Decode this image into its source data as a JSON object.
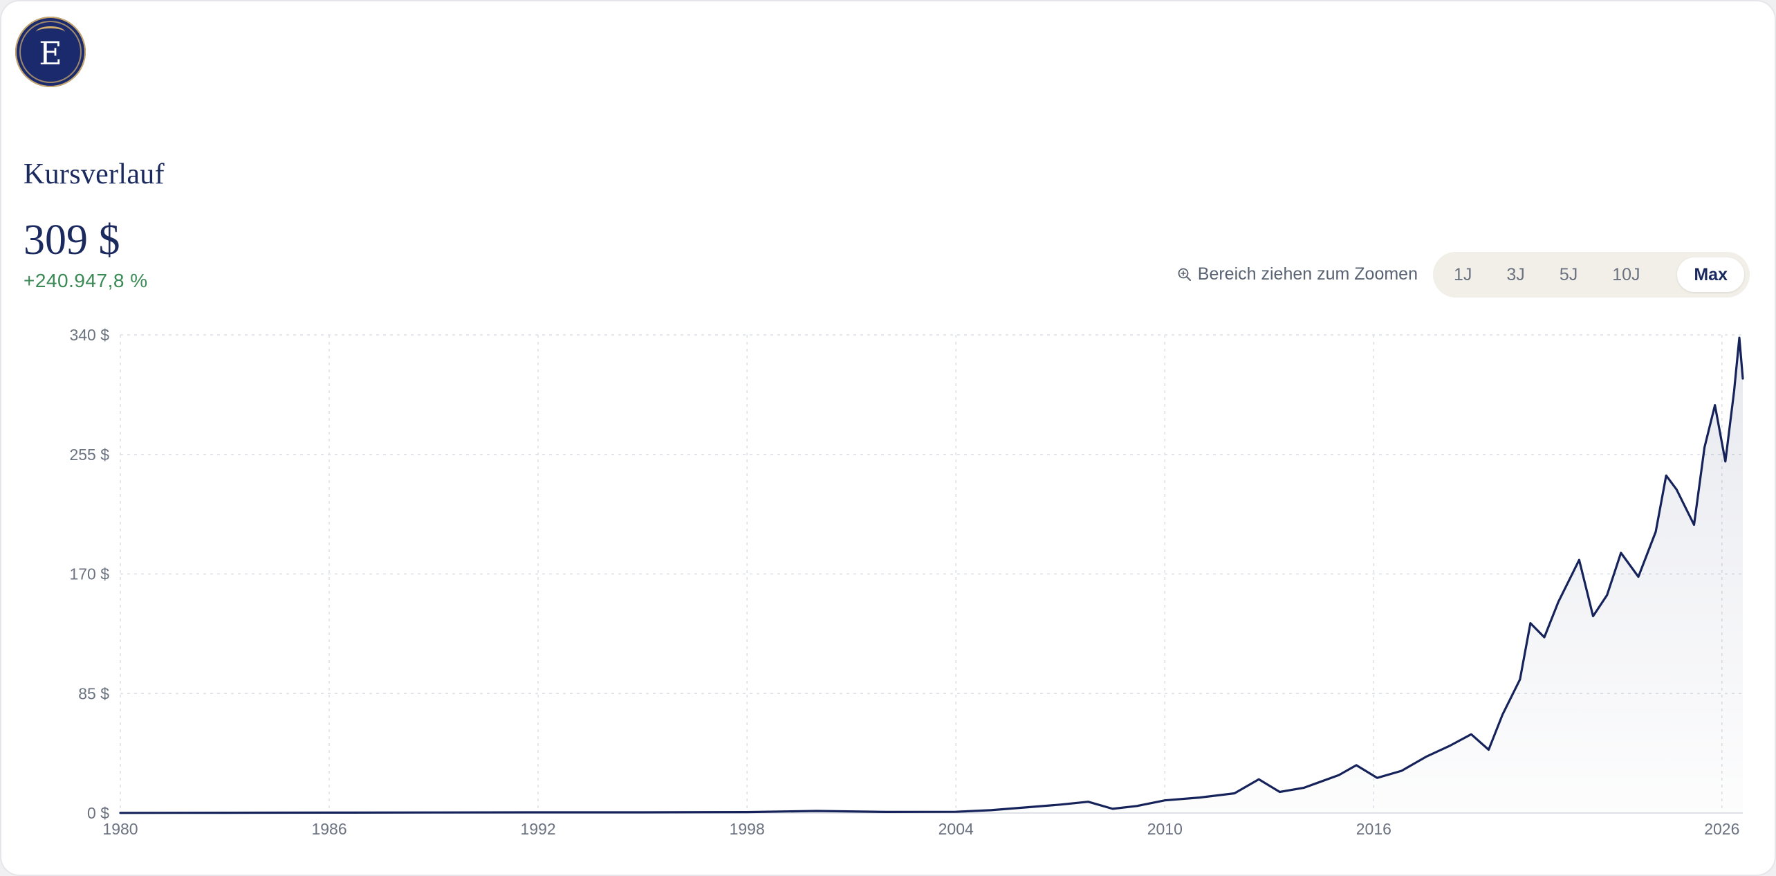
{
  "logo": {
    "letter": "E"
  },
  "header": {
    "title": "Kursverlauf",
    "price": "309 $",
    "change": "+240.947,8 %"
  },
  "controls": {
    "zoom_hint": "Bereich ziehen zum Zoomen",
    "zoom_icon": "zoom-in-icon",
    "ranges": [
      "1J",
      "3J",
      "5J",
      "10J",
      "Max"
    ],
    "active_range": "Max"
  },
  "colors": {
    "brand": "#1b2a5e",
    "line": "#15235a",
    "positive": "#3a8a55",
    "grid": "#dcdfe6",
    "axis_text": "#6b7280"
  },
  "chart_data": {
    "type": "line",
    "title": "",
    "xlabel": "",
    "ylabel": "",
    "xlim": [
      1980,
      2026.6
    ],
    "ylim": [
      0,
      340
    ],
    "y_ticks": [
      0,
      85,
      170,
      255,
      340
    ],
    "y_tick_labels": [
      "0 $",
      "85 $",
      "170 $",
      "255 $",
      "340 $"
    ],
    "x_ticks": [
      1980,
      1986,
      1992,
      1998,
      2004,
      2010,
      2016,
      2026
    ],
    "x_tick_labels": [
      "1980",
      "1986",
      "1992",
      "1998",
      "2004",
      "2010",
      "2016",
      "2026"
    ],
    "grid": true,
    "series": [
      {
        "x": [
          1980,
          1983,
          1986,
          1989,
          1992,
          1995,
          1998,
          2000,
          2002,
          2004,
          2005,
          2006,
          2007,
          2007.8,
          2008.5,
          2009.2,
          2010,
          2011,
          2012,
          2012.7,
          2013.3,
          2014,
          2015,
          2015.5,
          2016.1,
          2016.8,
          2017.5,
          2018.2,
          2018.8,
          2019.3,
          2019.7,
          2020.2,
          2020.5,
          2020.9,
          2021.3,
          2021.9,
          2022.3,
          2022.7,
          2023.1,
          2023.6,
          2024.1,
          2024.4,
          2024.7,
          2025.2,
          2025.5,
          2025.8,
          2026.1,
          2026.35,
          2026.5,
          2026.6
        ],
        "y": [
          0.1,
          0.2,
          0.3,
          0.4,
          0.5,
          0.5,
          0.7,
          1.5,
          0.8,
          0.9,
          2,
          4,
          6,
          8,
          3,
          5,
          9,
          11,
          14,
          24,
          15,
          18,
          27,
          34,
          25,
          30,
          40,
          48,
          56,
          45,
          70,
          95,
          135,
          125,
          150,
          180,
          140,
          155,
          185,
          168,
          200,
          240,
          230,
          205,
          260,
          290,
          250,
          300,
          338,
          309
        ]
      }
    ]
  }
}
